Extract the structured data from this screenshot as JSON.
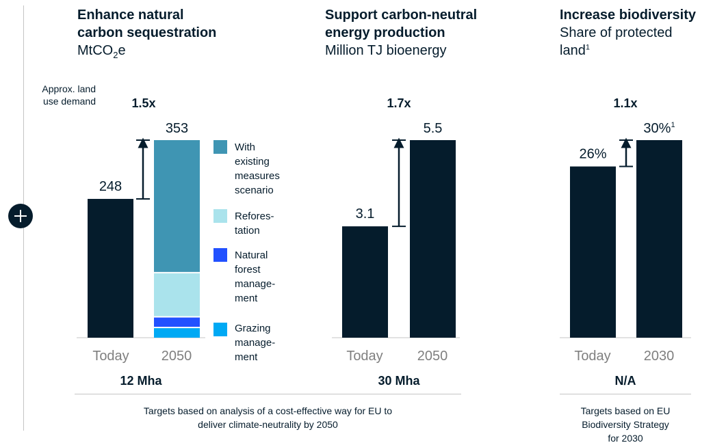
{
  "colors": {
    "navy": "#051c2c",
    "existing": "#3f95b3",
    "reforestation": "#aae3ec",
    "natural_forest": "#2251ff",
    "grazing": "#00a9f4",
    "axis": "#c4c4c4",
    "category_text": "#7f7f7f"
  },
  "side_label": {
    "line1": "Approx. land",
    "line2": "use demand"
  },
  "panels": [
    {
      "title_line1": "Enhance natural",
      "title_line2": "carbon sequestration",
      "subtitle_base": "MtCO",
      "subtitle_sub": "2",
      "subtitle_tail": "e",
      "land_use": "12 Mha",
      "footnote_lines": [
        "Targets based on analysis of a cost-effective way for EU to",
        "deliver climate-neutrality by 2050"
      ]
    },
    {
      "title_line1": "Support carbon-neutral",
      "title_line2": "energy production",
      "subtitle_line1": "Million TJ bioenergy",
      "land_use": "30 Mha"
    },
    {
      "title_line1": "Increase biodiversity",
      "subtitle_line1": "Share of protected",
      "subtitle_line2_base": "land",
      "subtitle_line2_sup": "1",
      "land_use": "N/A",
      "footnote_lines": [
        "Targets based on EU",
        "Biodiversity Strategy",
        "for 2030"
      ]
    }
  ],
  "legend": [
    {
      "key": "existing",
      "lines": [
        "With",
        "existing",
        "measures",
        "scenario"
      ]
    },
    {
      "key": "reforestation",
      "lines": [
        "Refores-",
        "tation"
      ]
    },
    {
      "key": "natural_forest",
      "lines": [
        "Natural",
        "forest",
        "manage-",
        "ment"
      ]
    },
    {
      "key": "grazing",
      "lines": [
        "Grazing",
        "manage-",
        "ment"
      ]
    }
  ],
  "chart_data": [
    {
      "type": "bar",
      "title": "Enhance natural carbon sequestration",
      "unit": "MtCO2e",
      "categories": [
        "Today",
        "2050"
      ],
      "ylim": [
        0,
        353
      ],
      "multiplier": "1.5x",
      "bars": [
        {
          "category": "Today",
          "value": 248,
          "label": "248"
        },
        {
          "category": "2050",
          "value": 353,
          "label": "353",
          "stack": [
            {
              "name": "Grazing management",
              "value": 17
            },
            {
              "name": "Natural forest management",
              "value": 19
            },
            {
              "name": "Reforestation",
              "value": 79
            },
            {
              "name": "With existing measures scenario",
              "value": 238
            }
          ]
        }
      ]
    },
    {
      "type": "bar",
      "title": "Support carbon-neutral energy production",
      "unit": "Million TJ bioenergy",
      "categories": [
        "Today",
        "2050"
      ],
      "ylim": [
        0,
        5.5
      ],
      "multiplier": "1.7x",
      "bars": [
        {
          "category": "Today",
          "value": 3.1,
          "label": "3.1"
        },
        {
          "category": "2050",
          "value": 5.5,
          "label": "5.5"
        }
      ]
    },
    {
      "type": "bar",
      "title": "Increase biodiversity",
      "unit": "Share of protected land",
      "categories": [
        "Today",
        "2030"
      ],
      "ylim": [
        0,
        30
      ],
      "multiplier": "1.1x",
      "bars": [
        {
          "category": "Today",
          "value": 26,
          "label": "26%"
        },
        {
          "category": "2030",
          "value": 30,
          "label": "30%",
          "label_sup": "1"
        }
      ]
    }
  ]
}
